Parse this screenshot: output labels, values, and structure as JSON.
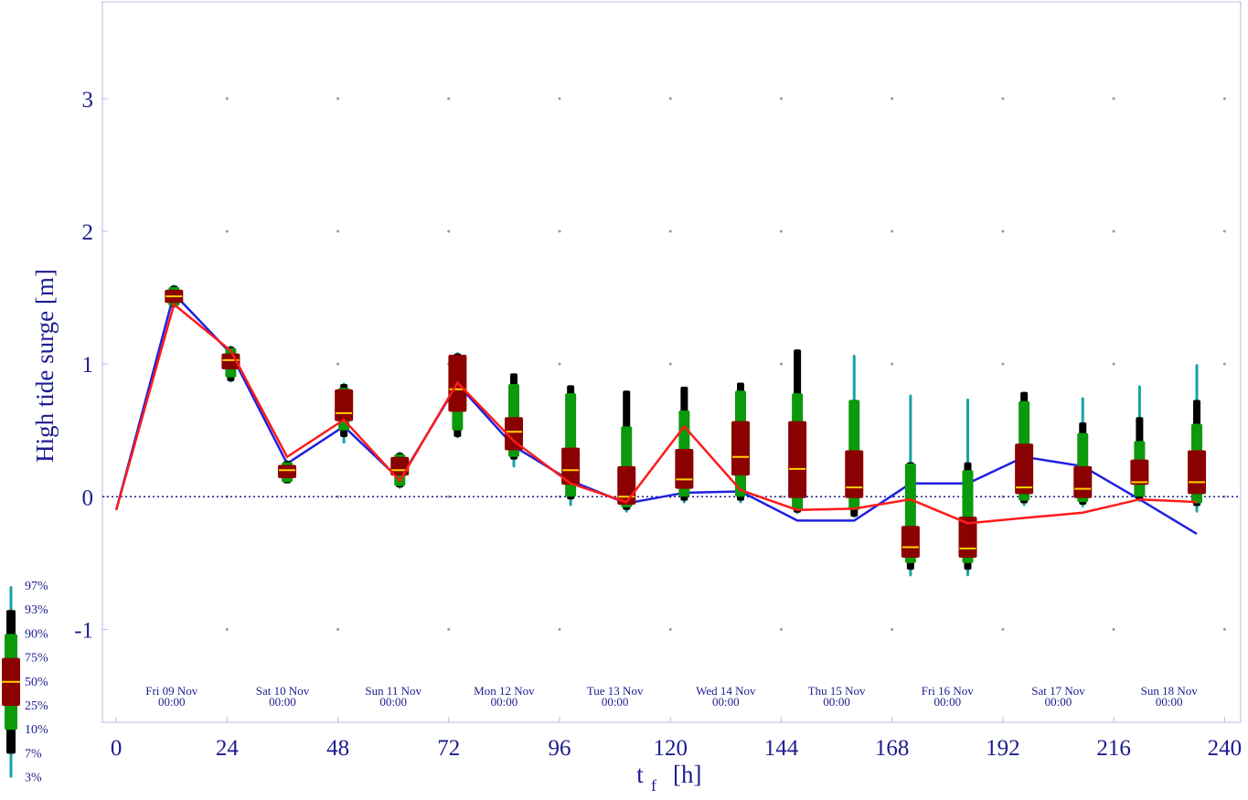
{
  "chart_data": {
    "type": "box",
    "ylabel": "High tide surge [m]",
    "xlabel": "t",
    "xlabel_sub": "f",
    "xlabel_unit": "[h]",
    "xlim": [
      -3,
      243.5
    ],
    "ylim": [
      -1.7,
      3.73
    ],
    "xticks": [
      0,
      24,
      48,
      72,
      96,
      120,
      144,
      168,
      192,
      216,
      240
    ],
    "yticks": [
      -1,
      0,
      1,
      2,
      3
    ],
    "grid": true,
    "reference_line": 0,
    "x": [
      0,
      12.5,
      24.8,
      37,
      49.3,
      61.4,
      73.9,
      86.1,
      98.4,
      110.5,
      123,
      135.2,
      147.5,
      159.8,
      172,
      184.4,
      196.6,
      209.3,
      221.6,
      234
    ],
    "series": [
      {
        "color": "#2020e0",
        "values": [
          -0.1,
          1.53,
          1.08,
          0.25,
          0.53,
          0.13,
          0.85,
          0.38,
          0.12,
          -0.05,
          0.03,
          0.04,
          -0.18,
          -0.18,
          0.1,
          0.1,
          0.3,
          0.23,
          -0.02,
          -0.28
        ]
      },
      {
        "color": "#ff1a1a",
        "values": [
          -0.1,
          1.45,
          1.1,
          0.3,
          0.58,
          0.12,
          0.86,
          0.42,
          0.1,
          -0.04,
          0.53,
          0.05,
          -0.1,
          -0.09,
          -0.02,
          -0.2,
          -0.16,
          -0.12,
          -0.02,
          -0.04
        ]
      }
    ],
    "boxes": {
      "x": [
        12.5,
        24.8,
        37,
        49.3,
        61.4,
        73.9,
        86.1,
        98.4,
        110.5,
        123,
        135.2,
        147.5,
        159.8,
        172,
        184.4,
        196.6,
        209.3,
        221.6,
        234
      ],
      "p3": [
        1.42,
        0.86,
        0.1,
        0.4,
        0.06,
        0.44,
        0.22,
        -0.07,
        -0.12,
        -0.05,
        -0.05,
        -0.13,
        -0.16,
        -0.6,
        -0.6,
        -0.07,
        -0.08,
        -0.04,
        -0.12
      ],
      "p7": [
        1.43,
        0.87,
        0.1,
        0.45,
        0.07,
        0.45,
        0.28,
        -0.02,
        -0.1,
        -0.03,
        -0.03,
        -0.12,
        -0.15,
        -0.55,
        -0.55,
        -0.05,
        -0.06,
        -0.02,
        -0.07
      ],
      "p10": [
        1.44,
        0.9,
        0.11,
        0.5,
        0.08,
        0.5,
        0.3,
        0,
        -0.08,
        0,
        0,
        -0.1,
        -0.1,
        -0.5,
        -0.5,
        -0.03,
        -0.04,
        0,
        -0.05
      ],
      "p25": [
        1.46,
        0.96,
        0.14,
        0.57,
        0.16,
        0.64,
        0.35,
        0.09,
        -0.06,
        0.06,
        0.16,
        -0.01,
        -0.01,
        -0.46,
        -0.46,
        0.02,
        -0.01,
        0.09,
        0.02
      ],
      "p50": [
        1.51,
        1.03,
        0.2,
        0.63,
        0.2,
        0.81,
        0.49,
        0.2,
        0,
        0.13,
        0.3,
        0.21,
        0.07,
        -0.38,
        -0.39,
        0.07,
        0.06,
        0.11,
        0.11
      ],
      "p75": [
        1.56,
        1.08,
        0.24,
        0.81,
        0.3,
        1.07,
        0.6,
        0.37,
        0.23,
        0.36,
        0.57,
        0.57,
        0.35,
        -0.22,
        -0.15,
        0.4,
        0.23,
        0.28,
        0.35
      ],
      "p90": [
        1.58,
        1.12,
        0.26,
        0.82,
        0.32,
        1.07,
        0.85,
        0.78,
        0.53,
        0.65,
        0.8,
        0.78,
        0.73,
        0.25,
        0.2,
        0.72,
        0.48,
        0.42,
        0.55
      ],
      "p93": [
        1.59,
        1.13,
        0.27,
        0.85,
        0.33,
        1.08,
        0.93,
        0.84,
        0.8,
        0.83,
        0.86,
        1.11,
        0.73,
        0.26,
        0.26,
        0.79,
        0.56,
        0.6,
        0.73
      ],
      "p97": [
        1.6,
        1.14,
        0.28,
        0.86,
        0.34,
        1.09,
        0.93,
        0.84,
        0.8,
        0.83,
        0.86,
        1.11,
        1.07,
        0.77,
        0.74,
        0.79,
        0.75,
        0.84,
        1.0
      ]
    },
    "date_labels": [
      {
        "x": 12,
        "day": "Fri 09 Nov",
        "time": "00:00"
      },
      {
        "x": 36,
        "day": "Sat 10 Nov",
        "time": "00:00"
      },
      {
        "x": 60,
        "day": "Sun 11 Nov",
        "time": "00:00"
      },
      {
        "x": 84,
        "day": "Mon 12 Nov",
        "time": "00:00"
      },
      {
        "x": 108,
        "day": "Tue 13 Nov",
        "time": "00:00"
      },
      {
        "x": 132,
        "day": "Wed 14 Nov",
        "time": "00:00"
      },
      {
        "x": 156,
        "day": "Thu 15 Nov",
        "time": "00:00"
      },
      {
        "x": 180,
        "day": "Fri 16 Nov",
        "time": "00:00"
      },
      {
        "x": 204,
        "day": "Sat 17 Nov",
        "time": "00:00"
      },
      {
        "x": 228,
        "day": "Sun 18 Nov",
        "time": "00:00"
      }
    ],
    "percentile_legend": [
      {
        "value": 97,
        "label": "97%"
      },
      {
        "value": 93,
        "label": "93%"
      },
      {
        "value": 90,
        "label": "90%"
      },
      {
        "value": 75,
        "label": "75%"
      },
      {
        "value": 50,
        "label": "50%"
      },
      {
        "value": 25,
        "label": "25%"
      },
      {
        "value": 10,
        "label": "10%"
      },
      {
        "value": 7,
        "label": "7%"
      },
      {
        "value": 3,
        "label": "3%"
      }
    ]
  }
}
